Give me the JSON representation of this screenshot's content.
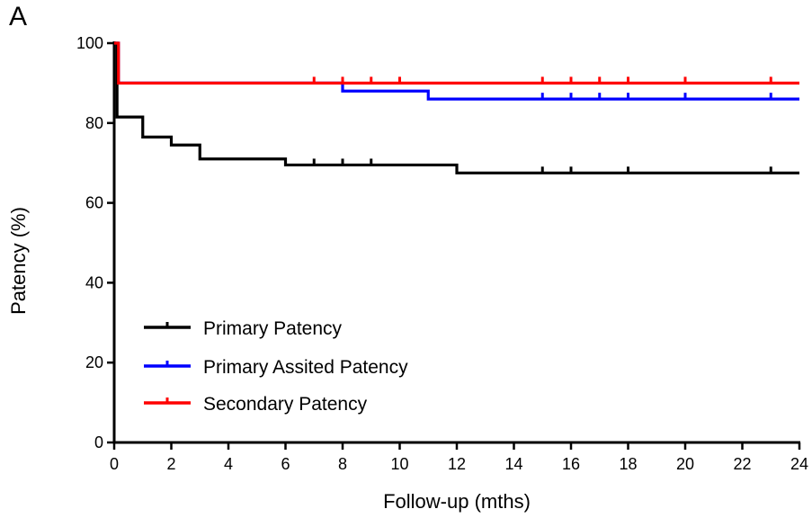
{
  "panel_label": "A",
  "chart_data": {
    "type": "line",
    "step": true,
    "xlabel": "Follow-up (mths)",
    "ylabel": "Patency (%)",
    "xlim": [
      0,
      24
    ],
    "ylim": [
      0,
      100
    ],
    "xticks": [
      0,
      2,
      4,
      6,
      8,
      10,
      12,
      14,
      16,
      18,
      20,
      22,
      24
    ],
    "yticks": [
      0,
      20,
      40,
      60,
      80,
      100
    ],
    "grid": false,
    "legend_position": "lower-left",
    "series": [
      {
        "name": "Primary Patency",
        "color": "#000000",
        "points": [
          [
            0,
            100
          ],
          [
            0.1,
            81.5
          ],
          [
            1,
            76.5
          ],
          [
            2,
            74.5
          ],
          [
            3,
            71
          ],
          [
            6,
            69.5
          ],
          [
            12,
            67.5
          ],
          [
            24,
            67.5
          ]
        ],
        "censored": [
          7,
          8,
          9,
          15,
          16,
          18,
          23
        ]
      },
      {
        "name": "Primary Assited Patency",
        "color": "#0000ff",
        "points": [
          [
            0,
            100
          ],
          [
            0.15,
            90
          ],
          [
            8,
            88
          ],
          [
            11,
            86
          ],
          [
            24,
            86
          ]
        ],
        "censored": [
          15,
          16,
          17,
          18,
          20,
          23
        ]
      },
      {
        "name": "Secondary Patency",
        "color": "#ff0000",
        "points": [
          [
            0,
            100
          ],
          [
            0.15,
            90
          ],
          [
            24,
            90
          ]
        ],
        "censored": [
          7,
          8,
          9,
          10,
          15,
          16,
          17,
          18,
          20,
          23
        ]
      }
    ]
  }
}
